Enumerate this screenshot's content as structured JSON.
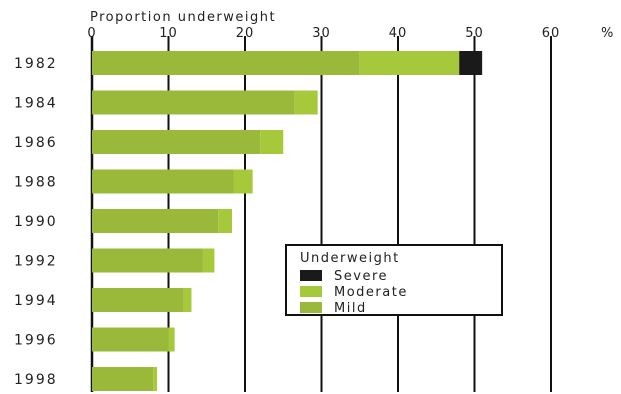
{
  "chart_data": {
    "type": "bar",
    "orientation": "horizontal",
    "stacked": true,
    "xlabel": "Proportion underweight",
    "unit_label": "%",
    "xlim": [
      0,
      60
    ],
    "x_ticks": [
      "0",
      "10",
      "20",
      "30",
      "40",
      "50",
      "60"
    ],
    "grid": "vertical",
    "categories": [
      "1982",
      "1984",
      "1986",
      "1988",
      "1990",
      "1992",
      "1994",
      "1996",
      "1998"
    ],
    "series": [
      {
        "name": "Mild",
        "color": "#9ab83a",
        "values": [
          35.0,
          26.5,
          22.0,
          18.5,
          16.5,
          14.5,
          12.0,
          10.0,
          8.0
        ]
      },
      {
        "name": "Moderate",
        "color": "#a6c93b",
        "values": [
          13.0,
          3.0,
          3.0,
          2.5,
          1.8,
          1.5,
          1.0,
          0.8,
          0.5
        ]
      },
      {
        "name": "Severe",
        "color": "#1a1a1a",
        "values": [
          3.0,
          0,
          0,
          0,
          0,
          0,
          0,
          0,
          0
        ]
      }
    ],
    "legend": {
      "title": "Underweight",
      "placement": "inside-lower-right",
      "order": [
        "Severe",
        "Moderate",
        "Mild"
      ]
    }
  }
}
